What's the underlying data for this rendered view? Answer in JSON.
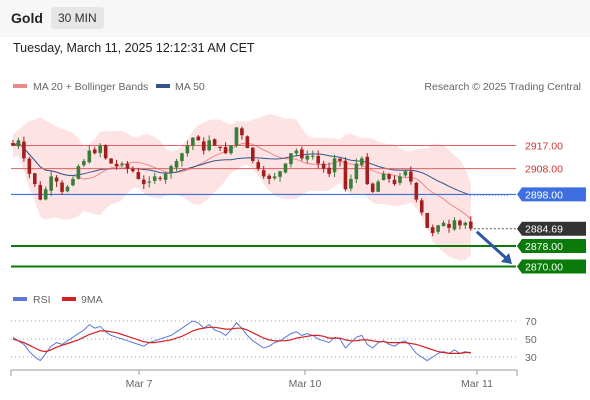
{
  "header": {
    "symbol": "Gold",
    "interval": "30 MIN",
    "datetime": "Tuesday, March 11, 2025 12:12:31 AM CET"
  },
  "chart_data": {
    "type": "candlestick",
    "legend": {
      "ma20_bb": "MA 20 + Bollinger Bands",
      "ma50": "MA 50",
      "copyright": "Research © 2025 Trading Central"
    },
    "colors": {
      "bull": "#3a7d3a",
      "bear": "#a31f1f",
      "bollinger_fill": "#fde3e3",
      "ma20": "#ec8a8a",
      "ma50": "#33558b",
      "resistance": "#e06060",
      "pivot": "#3d6fe0",
      "support": "#0a7a0a",
      "last_price": "#333333",
      "arrow": "#2f57a0"
    },
    "y_range": [
      2864,
      2930
    ],
    "levels": {
      "resistance": [
        {
          "value": 2917.0,
          "label": "2917.00"
        },
        {
          "value": 2908.0,
          "label": "2908.00"
        }
      ],
      "pivot": {
        "value": 2898.0,
        "label": "2898.00"
      },
      "last_price": {
        "value": 2884.69,
        "label": "2884.69"
      },
      "support": [
        {
          "value": 2878.0,
          "label": "2878.00"
        },
        {
          "value": 2870.0,
          "label": "2870.00"
        }
      ]
    },
    "projection": {
      "from": 2883.5,
      "to": 2871.0
    },
    "close_series": [
      2917,
      2919,
      2912,
      2906,
      2902,
      2896,
      2900,
      2905,
      2903,
      2899,
      2901,
      2904,
      2909,
      2911,
      2915,
      2914,
      2917,
      2912,
      2910,
      2909,
      2910,
      2908,
      2907,
      2904,
      2902,
      2903,
      2905,
      2904,
      2906,
      2909,
      2911,
      2914,
      2917,
      2920,
      2919,
      2915,
      2919,
      2917,
      2916,
      2914,
      2917,
      2924,
      2921,
      2916,
      2911,
      2908,
      2905,
      2904,
      2905,
      2907,
      2910,
      2914,
      2915,
      2912,
      2913,
      2913,
      2910,
      2908,
      2906,
      2912,
      2911,
      2900,
      2904,
      2910,
      2912,
      2902,
      2899,
      2903,
      2906,
      2904,
      2902,
      2905,
      2907,
      2903,
      2896,
      2891,
      2885,
      2883,
      2886,
      2887,
      2885,
      2888,
      2886,
      2887,
      2884.69
    ],
    "rsi": {
      "legend": {
        "rsi": "RSI",
        "signal": "9MA"
      },
      "colors": {
        "rsi": "#5b78d8",
        "signal": "#d42020"
      },
      "range": [
        20,
        80
      ],
      "ticks": [
        "70",
        "50",
        "30"
      ],
      "rsi_values": [
        52,
        48,
        44,
        36,
        30,
        26,
        34,
        42,
        46,
        44,
        48,
        52,
        56,
        60,
        66,
        62,
        64,
        58,
        54,
        52,
        50,
        48,
        46,
        44,
        42,
        46,
        48,
        50,
        52,
        54,
        58,
        62,
        66,
        70,
        68,
        62,
        66,
        60,
        58,
        54,
        60,
        68,
        62,
        54,
        48,
        44,
        40,
        42,
        46,
        48,
        52,
        56,
        58,
        54,
        56,
        54,
        50,
        48,
        46,
        52,
        50,
        40,
        46,
        52,
        54,
        44,
        40,
        46,
        48,
        44,
        42,
        46,
        48,
        42,
        34,
        30,
        26,
        30,
        34,
        36,
        34,
        38,
        34,
        36,
        34
      ],
      "signal_values": [
        50,
        48,
        46,
        43,
        40,
        37,
        36,
        38,
        41,
        43,
        45,
        47,
        49,
        52,
        55,
        57,
        59,
        59,
        58,
        57,
        55,
        53,
        51,
        49,
        47,
        46,
        46,
        47,
        48,
        49,
        51,
        53,
        56,
        59,
        61,
        62,
        63,
        63,
        62,
        61,
        61,
        62,
        62,
        60,
        57,
        54,
        51,
        49,
        48,
        48,
        48,
        49,
        51,
        52,
        53,
        54,
        54,
        53,
        51,
        51,
        51,
        49,
        48,
        48,
        49,
        49,
        48,
        47,
        47,
        46,
        46,
        46,
        46,
        45,
        44,
        42,
        40,
        38,
        36,
        35,
        34,
        34,
        34,
        35,
        35
      ]
    },
    "x_axis": {
      "ticks": [
        "Mar 7",
        "Mar 10",
        "Mar 11"
      ]
    }
  }
}
